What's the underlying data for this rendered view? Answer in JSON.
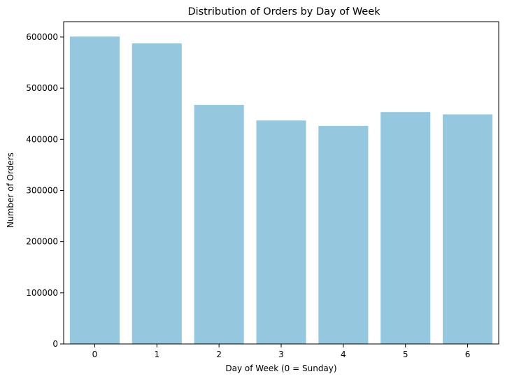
{
  "chart_data": {
    "type": "bar",
    "title": "Distribution of Orders by Day of Week",
    "xlabel": "Day of Week (0 = Sunday)",
    "ylabel": "Number of Orders",
    "categories": [
      "0",
      "1",
      "2",
      "3",
      "4",
      "5",
      "6"
    ],
    "values": [
      600900,
      587500,
      467300,
      436900,
      426300,
      453400,
      448800
    ],
    "ylim": [
      0,
      630000
    ],
    "yticks": [
      0,
      100000,
      200000,
      300000,
      400000,
      500000,
      600000
    ],
    "ytick_labels": [
      "0",
      "100000",
      "200000",
      "300000",
      "400000",
      "500000",
      "600000"
    ],
    "bar_color": "#95c8de",
    "grid": false,
    "legend": "none"
  }
}
